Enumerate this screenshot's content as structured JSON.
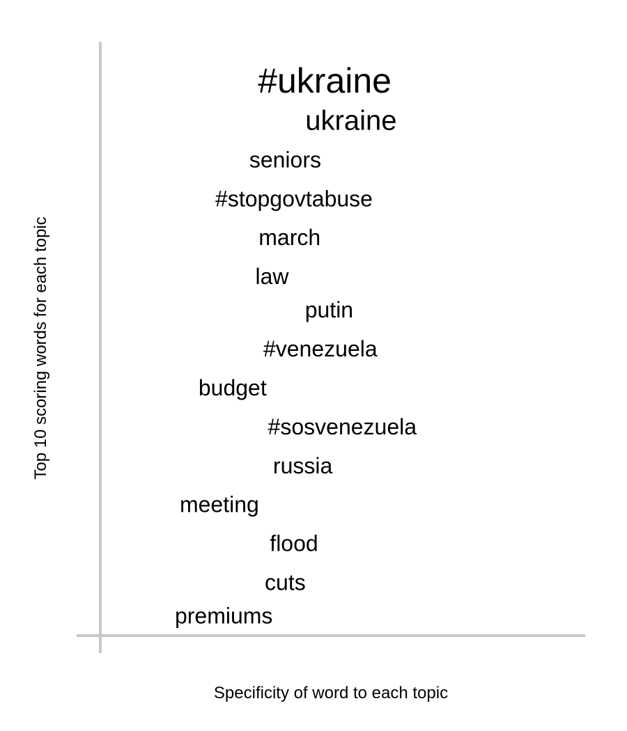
{
  "chart_data": {
    "type": "scatter",
    "xlabel": "Specificity of word to each topic",
    "ylabel": "Top 10 scoring words for each topic",
    "grid": false,
    "axis_color": "#c8c8c8",
    "text_color": "#000000",
    "words": [
      {
        "label": "#ukraine",
        "x": 0.47,
        "y": 0.96,
        "emphasis": 2
      },
      {
        "label": "ukraine",
        "x": 0.53,
        "y": 0.89,
        "emphasis": 1
      },
      {
        "label": "seniors",
        "x": 0.38,
        "y": 0.82,
        "emphasis": 0
      },
      {
        "label": "#stopgovtabuse",
        "x": 0.4,
        "y": 0.75,
        "emphasis": 0
      },
      {
        "label": "march",
        "x": 0.39,
        "y": 0.68,
        "emphasis": 0
      },
      {
        "label": "law",
        "x": 0.35,
        "y": 0.61,
        "emphasis": 0
      },
      {
        "label": "putin",
        "x": 0.48,
        "y": 0.55,
        "emphasis": 0
      },
      {
        "label": "#venezuela",
        "x": 0.46,
        "y": 0.48,
        "emphasis": 0
      },
      {
        "label": "budget",
        "x": 0.26,
        "y": 0.41,
        "emphasis": 0
      },
      {
        "label": "#sosvenezuela",
        "x": 0.51,
        "y": 0.34,
        "emphasis": 0
      },
      {
        "label": "russia",
        "x": 0.42,
        "y": 0.27,
        "emphasis": 0
      },
      {
        "label": "meeting",
        "x": 0.23,
        "y": 0.2,
        "emphasis": 0
      },
      {
        "label": "flood",
        "x": 0.4,
        "y": 0.13,
        "emphasis": 0
      },
      {
        "label": "cuts",
        "x": 0.38,
        "y": 0.06,
        "emphasis": 0
      },
      {
        "label": "premiums",
        "x": 0.24,
        "y": 0.0,
        "emphasis": 0
      }
    ]
  }
}
